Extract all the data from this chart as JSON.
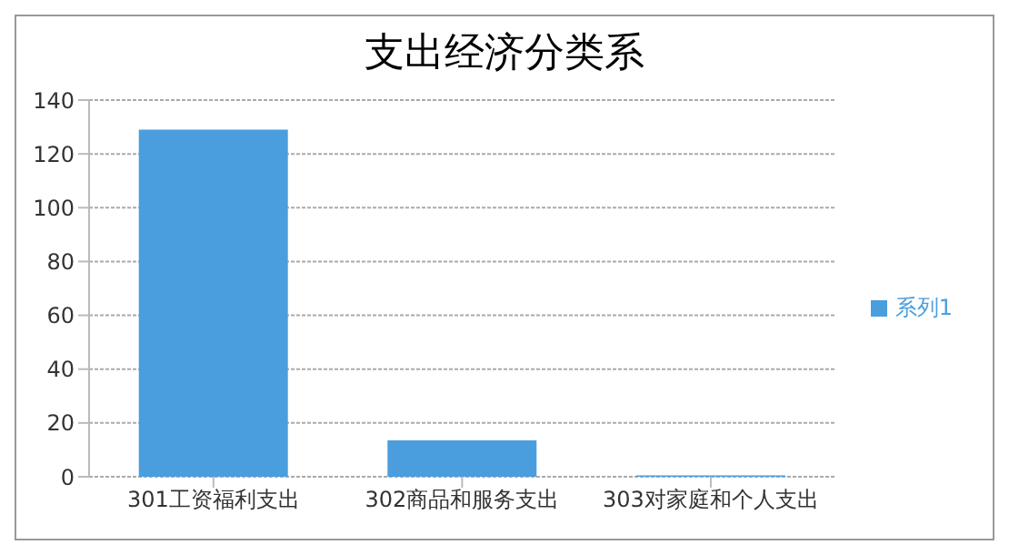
{
  "chart_data": {
    "type": "bar",
    "title": "支出经济分类系",
    "categories": [
      "301工资福利支出",
      "302商品和服务支出",
      "303对家庭和个人支出"
    ],
    "series": [
      {
        "name": "系列1",
        "color": "#4a9ede",
        "values": [
          129,
          13.5,
          0.5
        ]
      }
    ],
    "ylim": [
      0,
      140
    ],
    "yticks": [
      0,
      20,
      40,
      60,
      80,
      100,
      120,
      140
    ],
    "grid": "y",
    "legend": "right"
  }
}
